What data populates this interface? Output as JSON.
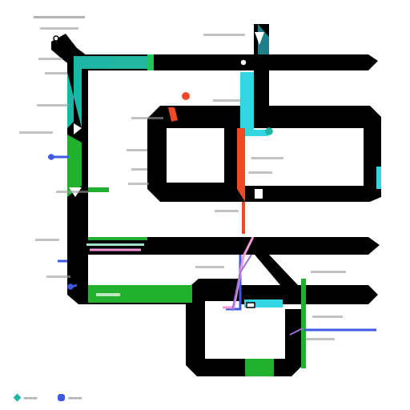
{
  "diagram": {
    "colors": {
      "track": "#000000",
      "teal": "#1fb5a5",
      "green": "#22b02f",
      "red": "#ef4a27",
      "cyan": "#34d6e4",
      "blue": "#3f5ae0",
      "pink": "#f29ad8",
      "purple": "#9b6ed8",
      "station": "#ffffff",
      "label_text": "#6f6f6f"
    },
    "legend": [
      {
        "color": "#1fb5a5",
        "shape": "diamond"
      },
      {
        "color": "#3f5ae0",
        "shape": "rounded-square"
      }
    ]
  }
}
